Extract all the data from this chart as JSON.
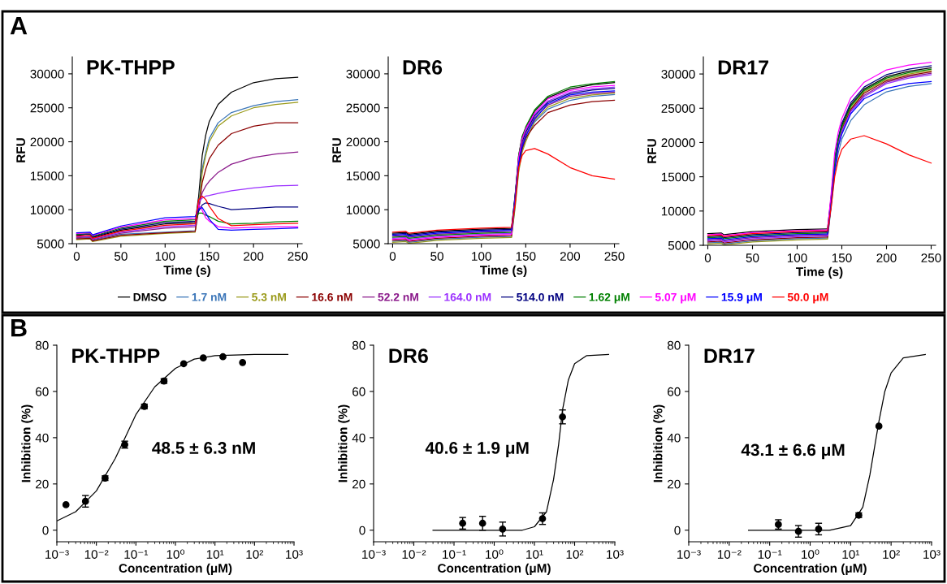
{
  "chart_data": [
    {
      "type": "line",
      "title": "PK-THPP",
      "xlabel": "Time (s)",
      "ylabel": "RFU",
      "annotations": [
        "A"
      ],
      "xlim": [
        -5,
        255
      ],
      "xticks": [
        0,
        50,
        100,
        150,
        200,
        250
      ],
      "ylim": [
        5000,
        32500
      ],
      "yticks": [
        5000,
        10000,
        15000,
        20000,
        25000,
        30000
      ],
      "legend": "bottom",
      "marker": "none",
      "line_style": "solid",
      "x": [
        0,
        15,
        18,
        50,
        100,
        134,
        138,
        142,
        146,
        150,
        160,
        175,
        200,
        225,
        250
      ],
      "series": [
        {
          "name": "DMSO",
          "color": "#000000",
          "values": [
            6200,
            6500,
            5900,
            7000,
            7900,
            8100,
            12000,
            18000,
            21000,
            23000,
            25500,
            27300,
            28700,
            29300,
            29500
          ]
        },
        {
          "name": "1.7 nM",
          "color": "#3a75b8",
          "values": [
            5800,
            5900,
            5500,
            6400,
            6700,
            6900,
            11000,
            16000,
            18500,
            20500,
            22800,
            24300,
            25300,
            25900,
            26200
          ]
        },
        {
          "name": "5.3 nM",
          "color": "#9a9a1a",
          "values": [
            5600,
            5700,
            5300,
            6100,
            6500,
            6700,
            10500,
            15500,
            18000,
            20000,
            22300,
            23800,
            25000,
            25500,
            25800
          ]
        },
        {
          "name": "16.6 nM",
          "color": "#8b0000",
          "values": [
            5700,
            5800,
            5400,
            6250,
            6600,
            6800,
            10000,
            14000,
            16000,
            17500,
            19500,
            21200,
            22300,
            22800,
            22800
          ]
        },
        {
          "name": "52.2 nM",
          "color": "#8b1a8b",
          "values": [
            5900,
            6000,
            5600,
            6550,
            7300,
            7500,
            10300,
            12500,
            13500,
            14200,
            15500,
            16700,
            17700,
            18200,
            18500
          ]
        },
        {
          "name": "164.0 nM",
          "color": "#9b30ff",
          "values": [
            6000,
            6100,
            5700,
            6700,
            7500,
            7700,
            11200,
            11700,
            12000,
            12100,
            12400,
            12800,
            13200,
            13500,
            13600
          ]
        },
        {
          "name": "514.0 nM",
          "color": "#000080",
          "values": [
            6300,
            6400,
            6000,
            7150,
            8100,
            8300,
            9800,
            10700,
            11000,
            10900,
            10500,
            10000,
            10200,
            10400,
            10400
          ]
        },
        {
          "name": "1.62 μM",
          "color": "#008000",
          "values": [
            6400,
            6500,
            6100,
            7300,
            8300,
            8500,
            9500,
            9500,
            9200,
            9000,
            8300,
            7900,
            8000,
            8200,
            8300
          ]
        },
        {
          "name": "5.07 μM",
          "color": "#ff00ff",
          "values": [
            6500,
            6600,
            6200,
            7450,
            8500,
            8700,
            10700,
            9900,
            8800,
            8300,
            7500,
            7300,
            7400,
            7500,
            7500
          ]
        },
        {
          "name": "15.9 μM",
          "color": "#0000ff",
          "values": [
            6600,
            6700,
            6300,
            7600,
            8800,
            9000,
            10100,
            10300,
            9500,
            8600,
            7100,
            7000,
            7100,
            7200,
            7300
          ]
        },
        {
          "name": "50.0 μM",
          "color": "#ff0000",
          "values": [
            6100,
            6200,
            5800,
            6850,
            7700,
            7900,
            11500,
            12000,
            11500,
            10500,
            8700,
            7650,
            7800,
            7900,
            8000
          ]
        }
      ]
    },
    {
      "type": "line",
      "title": "DR6",
      "xlabel": "Time (s)",
      "ylabel": "RFU",
      "xlim": [
        -5,
        255
      ],
      "xticks": [
        0,
        50,
        100,
        150,
        200,
        250
      ],
      "ylim": [
        5000,
        32500
      ],
      "yticks": [
        5000,
        10000,
        15000,
        20000,
        25000,
        30000
      ],
      "marker": "none",
      "line_style": "solid",
      "x": [
        0,
        15,
        18,
        50,
        100,
        134,
        138,
        142,
        146,
        150,
        160,
        175,
        200,
        225,
        250
      ],
      "series": [
        {
          "color": "#000000",
          "values": [
            6550,
            6650,
            6400,
            6850,
            7150,
            7250,
            12000,
            18000,
            20800,
            22000,
            24500,
            26500,
            27800,
            28400,
            28700
          ]
        },
        {
          "color": "#3a75b8",
          "values": [
            5350,
            5450,
            5200,
            5650,
            5950,
            6050,
            10500,
            15800,
            18800,
            20300,
            22900,
            24800,
            26100,
            26700,
            26950
          ]
        },
        {
          "color": "#9a9a1a",
          "values": [
            5200,
            5300,
            5050,
            5500,
            5800,
            5900,
            10300,
            15500,
            18500,
            20000,
            23100,
            25100,
            26400,
            26900,
            27150
          ]
        },
        {
          "color": "#8b0000",
          "values": [
            5500,
            5600,
            5350,
            5800,
            6100,
            6200,
            11000,
            16500,
            19000,
            20600,
            22400,
            24300,
            25400,
            25900,
            26100
          ]
        },
        {
          "color": "#8b1a8b",
          "values": [
            6100,
            6200,
            5950,
            6400,
            6700,
            6800,
            11500,
            17000,
            19600,
            21000,
            23500,
            25400,
            26700,
            27100,
            27300
          ]
        },
        {
          "color": "#9b30ff",
          "values": [
            5800,
            5900,
            5650,
            6100,
            6400,
            6500,
            11700,
            17400,
            20300,
            21700,
            24000,
            26000,
            27300,
            27800,
            28050
          ]
        },
        {
          "color": "#000080",
          "values": [
            6400,
            6500,
            6250,
            6700,
            7000,
            7100,
            12200,
            17200,
            20000,
            21400,
            23800,
            25800,
            27100,
            27600,
            27850
          ]
        },
        {
          "color": "#008000",
          "values": [
            5950,
            6050,
            5800,
            6250,
            6550,
            6650,
            11800,
            17900,
            20600,
            22200,
            24700,
            26700,
            28050,
            28550,
            28850
          ]
        },
        {
          "color": "#ff00ff",
          "values": [
            5650,
            5750,
            5500,
            5950,
            6250,
            6350,
            11600,
            17700,
            20400,
            21900,
            24200,
            26300,
            27550,
            28100,
            28300
          ]
        },
        {
          "color": "#0000ff",
          "values": [
            6250,
            6350,
            6100,
            6550,
            6850,
            6950,
            11400,
            16800,
            19300,
            20800,
            23300,
            25600,
            26900,
            27300,
            27500
          ]
        },
        {
          "color": "#ff0000",
          "values": [
            6700,
            6800,
            6550,
            7000,
            7300,
            7400,
            10800,
            16200,
            18000,
            18700,
            19000,
            18200,
            16200,
            15000,
            14500
          ]
        }
      ]
    },
    {
      "type": "line",
      "title": "DR17",
      "xlabel": "Time (s)",
      "ylabel": "RFU",
      "xlim": [
        -5,
        255
      ],
      "xticks": [
        0,
        50,
        100,
        150,
        200,
        250
      ],
      "ylim": [
        5000,
        32500
      ],
      "yticks": [
        5000,
        10000,
        15000,
        20000,
        25000,
        30000
      ],
      "marker": "none",
      "line_style": "solid",
      "x": [
        0,
        15,
        18,
        50,
        100,
        134,
        138,
        142,
        146,
        150,
        160,
        175,
        200,
        225,
        250
      ],
      "series": [
        {
          "color": "#000000",
          "values": [
            6700,
            6800,
            6550,
            7000,
            7300,
            7400,
            12000,
            17500,
            20500,
            22500,
            25500,
            27800,
            29600,
            30400,
            30900
          ]
        },
        {
          "color": "#3a75b8",
          "values": [
            5350,
            5450,
            5200,
            5650,
            5950,
            6050,
            10500,
            15500,
            18500,
            20500,
            23200,
            25500,
            27400,
            28200,
            28600
          ]
        },
        {
          "color": "#9a9a1a",
          "values": [
            5200,
            5300,
            5050,
            5500,
            5800,
            5900,
            11000,
            16600,
            20000,
            22100,
            25000,
            27400,
            29200,
            30000,
            30500
          ]
        },
        {
          "color": "#8b0000",
          "values": [
            5500,
            5600,
            5350,
            5800,
            6100,
            6200,
            11000,
            16400,
            19700,
            21900,
            24800,
            27200,
            29000,
            29800,
            30300
          ]
        },
        {
          "color": "#8b1a8b",
          "values": [
            5800,
            5900,
            5650,
            6100,
            6400,
            6500,
            11000,
            16200,
            19400,
            21500,
            24600,
            26900,
            28800,
            29600,
            30100
          ]
        },
        {
          "color": "#9b30ff",
          "values": [
            5650,
            5750,
            5500,
            5950,
            6250,
            6350,
            11200,
            16800,
            19900,
            21700,
            24500,
            26700,
            28600,
            29400,
            29900
          ]
        },
        {
          "color": "#000080",
          "values": [
            6250,
            6350,
            6100,
            6550,
            6850,
            6950,
            11800,
            17500,
            20700,
            22800,
            25800,
            28100,
            29900,
            30700,
            31200
          ]
        },
        {
          "color": "#008000",
          "values": [
            6100,
            6200,
            5950,
            6400,
            6700,
            6800,
            11500,
            17300,
            20400,
            22300,
            25300,
            27600,
            29400,
            30200,
            30700
          ]
        },
        {
          "color": "#ff00ff",
          "values": [
            6550,
            6650,
            6400,
            6850,
            7150,
            7250,
            12500,
            18500,
            21500,
            23500,
            26500,
            28800,
            30600,
            31300,
            31700
          ]
        },
        {
          "color": "#0000ff",
          "values": [
            5950,
            6050,
            5800,
            6250,
            6550,
            6650,
            11000,
            16000,
            19500,
            21200,
            24200,
            26400,
            27900,
            28600,
            28900
          ]
        },
        {
          "color": "#ff0000",
          "values": [
            6400,
            6500,
            6250,
            6700,
            7000,
            7100,
            10500,
            15000,
            17500,
            19000,
            20500,
            21000,
            19800,
            18200,
            17000
          ]
        }
      ]
    },
    {
      "type": "scatter",
      "title": "PK-THPP",
      "xlabel": "Concentration (μM)",
      "ylabel": "Inhibition (%)",
      "annotations": [
        "B",
        "48.5 ± 6.3 nM"
      ],
      "log": "x",
      "xlim": [
        0.001,
        1000
      ],
      "xticks": [
        {
          "value": 0.001,
          "label": "10⁻³"
        },
        {
          "value": 0.01,
          "label": "10⁻²"
        },
        {
          "value": 0.1,
          "label": "10⁻¹"
        },
        {
          "value": 1,
          "label": "10⁰"
        },
        {
          "value": 10,
          "label": "10¹"
        },
        {
          "value": 100,
          "label": "10²"
        },
        {
          "value": 1000,
          "label": "10³"
        }
      ],
      "ylim": [
        -5,
        80
      ],
      "yticks": [
        0,
        20,
        40,
        60,
        80
      ],
      "series": [
        {
          "type": "scatter",
          "marker": "circle",
          "color": "#000000",
          "x": [
            0.0017,
            0.0053,
            0.0166,
            0.0522,
            0.164,
            0.514,
            1.62,
            5.07,
            15.9,
            50
          ],
          "values": [
            11,
            12.5,
            22.5,
            37,
            53.5,
            64.5,
            72,
            74.5,
            75,
            72.5
          ],
          "errors": [
            null,
            2.5,
            1,
            1.5,
            1,
            1,
            null,
            null,
            null,
            null
          ]
        },
        {
          "type": "line",
          "marker": "none",
          "color": "#000000",
          "x": [
            0.001,
            0.003,
            0.01,
            0.03,
            0.05,
            0.1,
            0.3,
            1,
            3,
            10,
            100,
            700
          ],
          "values": [
            4,
            8,
            17,
            31,
            39,
            50,
            62,
            70,
            74,
            75.5,
            76,
            76
          ]
        }
      ]
    },
    {
      "type": "scatter",
      "title": "DR6",
      "xlabel": "Concentration (μM)",
      "ylabel": "Inhibition (%)",
      "annotations": [
        "40.6 ± 1.9 μM"
      ],
      "log": "x",
      "xlim": [
        0.001,
        1000
      ],
      "xticks": [
        {
          "value": 0.001,
          "label": "10⁻³"
        },
        {
          "value": 0.01,
          "label": "10⁻²"
        },
        {
          "value": 0.1,
          "label": "10⁻¹"
        },
        {
          "value": 1,
          "label": "10⁰"
        },
        {
          "value": 10,
          "label": "10¹"
        },
        {
          "value": 100,
          "label": "10²"
        },
        {
          "value": 1000,
          "label": "10³"
        }
      ],
      "ylim": [
        -5,
        80
      ],
      "yticks": [
        0,
        20,
        40,
        60,
        80
      ],
      "series": [
        {
          "type": "scatter",
          "marker": "circle",
          "color": "#000000",
          "x": [
            0.164,
            0.514,
            1.62,
            15.9,
            50
          ],
          "values": [
            3,
            3,
            0.5,
            5,
            49
          ],
          "errors": [
            2.5,
            3,
            3,
            2.5,
            3
          ]
        },
        {
          "type": "line",
          "marker": "none",
          "color": "#000000",
          "x": [
            0.03,
            5,
            10,
            20,
            30,
            40,
            50,
            70,
            100,
            200,
            700
          ],
          "values": [
            0,
            0,
            1.5,
            8,
            22,
            37,
            52,
            65,
            72,
            75.5,
            76
          ]
        }
      ]
    },
    {
      "type": "scatter",
      "title": "DR17",
      "xlabel": "Concentration (μM)",
      "ylabel": "Inhibition (%)",
      "annotations": [
        "43.1 ± 6.6 μM"
      ],
      "log": "x",
      "xlim": [
        0.001,
        1000
      ],
      "xticks": [
        {
          "value": 0.001,
          "label": "10⁻³"
        },
        {
          "value": 0.01,
          "label": "10⁻²"
        },
        {
          "value": 0.1,
          "label": "10⁻¹"
        },
        {
          "value": 1,
          "label": "10⁰"
        },
        {
          "value": 10,
          "label": "10¹"
        },
        {
          "value": 100,
          "label": "10²"
        },
        {
          "value": 1000,
          "label": "10³"
        }
      ],
      "ylim": [
        -5,
        80
      ],
      "yticks": [
        0,
        20,
        40,
        60,
        80
      ],
      "series": [
        {
          "type": "scatter",
          "marker": "circle",
          "color": "#000000",
          "x": [
            0.164,
            0.514,
            1.62,
            15.9,
            50
          ],
          "values": [
            2.5,
            -0.5,
            0.5,
            6.5,
            45
          ],
          "errors": [
            2,
            2.5,
            2.5,
            1,
            null
          ]
        },
        {
          "type": "line",
          "marker": "none",
          "color": "#000000",
          "x": [
            0.03,
            3,
            10,
            20,
            30,
            40,
            50,
            70,
            100,
            200,
            700
          ],
          "values": [
            0,
            0,
            2,
            10,
            24,
            37,
            47,
            60,
            68,
            74.5,
            76
          ]
        }
      ]
    }
  ]
}
